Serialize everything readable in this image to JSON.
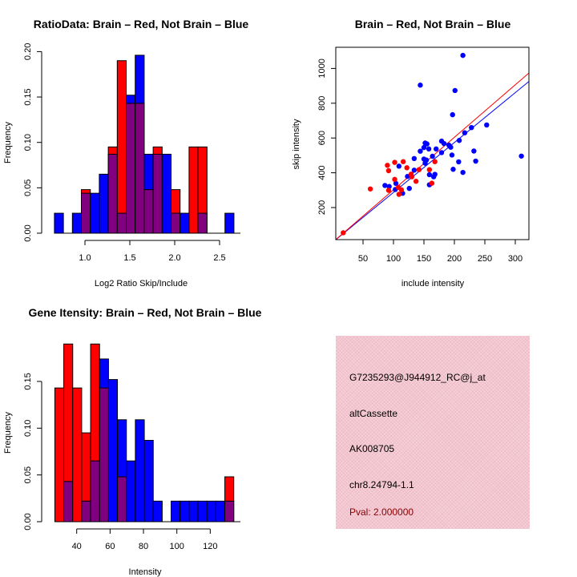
{
  "colors": {
    "brain": "#ff0000",
    "not_brain": "#0000ff",
    "overlap": "#800080",
    "info_bg": "#f3c6d0",
    "pval": "#8b0000"
  },
  "chart_data": [
    {
      "type": "bar",
      "subtype": "overlaid-histogram",
      "title": "RatioData: Brain – Red, Not Brain – Blue",
      "xlabel": "Log2 Ratio Skip/Include",
      "ylabel": "Frequency",
      "bin_start": 0.66,
      "bin_width": 0.1,
      "xticks": [
        "1.0",
        "1.5",
        "2.0",
        "2.5"
      ],
      "xtick_values": [
        1.0,
        1.5,
        2.0,
        2.5
      ],
      "yticks": [
        "0.00",
        "0.05",
        "0.10",
        "0.15",
        "0.20"
      ],
      "ytick_values": [
        0,
        0.05,
        0.1,
        0.15,
        0.2
      ],
      "series": [
        {
          "name": "Brain",
          "color": "#ff0000",
          "values": [
            0,
            0,
            0,
            0.048,
            0,
            0,
            0.095,
            0.19,
            0.143,
            0.143,
            0.048,
            0.095,
            0,
            0.048,
            0,
            0.095,
            0.095,
            0,
            0,
            0
          ]
        },
        {
          "name": "Not Brain",
          "color": "#0000ff",
          "values": [
            0.022,
            0,
            0.022,
            0.044,
            0.044,
            0.065,
            0.087,
            0.022,
            0.152,
            0.196,
            0.087,
            0.087,
            0.087,
            0.022,
            0.022,
            0,
            0.022,
            0,
            0,
            0.022
          ]
        }
      ]
    },
    {
      "type": "scatter",
      "title": "Brain – Red, Not Brain – Blue",
      "xlabel": "include intensity",
      "ylabel": "skip intensity",
      "xticks": [
        "50",
        "100",
        "150",
        "200",
        "250",
        "300"
      ],
      "xtick_values": [
        50,
        100,
        150,
        200,
        250,
        300
      ],
      "yticks": [
        "200",
        "400",
        "600",
        "800",
        "1000"
      ],
      "ytick_values": [
        200,
        400,
        600,
        800,
        1000
      ],
      "xlim": [
        5,
        322
      ],
      "ylim": [
        16,
        1120
      ],
      "series": [
        {
          "name": "Not Brain",
          "color": "#0000ff",
          "fit_slope": 2.87,
          "points": [
            [
              214,
              1075
            ],
            [
              144,
              904
            ],
            [
              201,
              873
            ],
            [
              197,
              734
            ],
            [
              253,
              675
            ],
            [
              228,
              660
            ],
            [
              217,
              630
            ],
            [
              208,
              586
            ],
            [
              179,
              582
            ],
            [
              183,
              568
            ],
            [
              152,
              571
            ],
            [
              155,
              566
            ],
            [
              150,
              545
            ],
            [
              158,
              537
            ],
            [
              170,
              537
            ],
            [
              191,
              559
            ],
            [
              194,
              547
            ],
            [
              144,
              524
            ],
            [
              179,
              516
            ],
            [
              196,
              502
            ],
            [
              232,
              525
            ],
            [
              164,
              495
            ],
            [
              134,
              482
            ],
            [
              150,
              479
            ],
            [
              154,
              473
            ],
            [
              152,
              455
            ],
            [
              235,
              467
            ],
            [
              207,
              463
            ],
            [
              109,
              438
            ],
            [
              134,
              415
            ],
            [
              198,
              420
            ],
            [
              214,
              402
            ],
            [
              159,
              389
            ],
            [
              168,
              391
            ],
            [
              166,
              377
            ],
            [
              123,
              379
            ],
            [
              129,
              382
            ],
            [
              310,
              496
            ],
            [
              104,
              339
            ],
            [
              86,
              327
            ],
            [
              93,
              321
            ],
            [
              103,
              304
            ],
            [
              126,
              310
            ],
            [
              115,
              282
            ],
            [
              159,
              331
            ]
          ]
        },
        {
          "name": "Brain",
          "color": "#ff0000",
          "fit_slope": 3.02,
          "points": [
            [
              17.5,
              55
            ],
            [
              62,
              307
            ],
            [
              90,
              443
            ],
            [
              92,
              412
            ],
            [
              102,
              460
            ],
            [
              116,
              464
            ],
            [
              122,
              429
            ],
            [
              142,
              418
            ],
            [
              159,
              418
            ],
            [
              168,
              464
            ],
            [
              102,
              362
            ],
            [
              129,
              392
            ],
            [
              130,
              377
            ],
            [
              137,
              351
            ],
            [
              163,
              340
            ],
            [
              92,
              299
            ],
            [
              108,
              316
            ],
            [
              113,
              302
            ],
            [
              109,
              276
            ]
          ]
        }
      ]
    },
    {
      "type": "bar",
      "subtype": "overlaid-histogram",
      "title": "Gene Itensity: Brain – Red, Not Brain – Blue",
      "xlabel": "Intensity",
      "ylabel": "Frequency",
      "bin_start": 26.9,
      "bin_width": 5.36,
      "xticks": [
        "40",
        "60",
        "80",
        "100",
        "120"
      ],
      "xtick_values": [
        40,
        60,
        80,
        100,
        120
      ],
      "yticks": [
        "0.00",
        "0.05",
        "0.10",
        "0.15"
      ],
      "ytick_values": [
        0,
        0.05,
        0.1,
        0.15
      ],
      "series": [
        {
          "name": "Brain",
          "color": "#ff0000",
          "values": [
            0.143,
            0.19,
            0.143,
            0.095,
            0.19,
            0.143,
            0,
            0.048,
            0,
            0,
            0,
            0,
            0,
            0,
            0,
            0,
            0,
            0,
            0,
            0.048
          ]
        },
        {
          "name": "Not Brain",
          "color": "#0000ff",
          "values": [
            0,
            0.043,
            0,
            0.022,
            0.065,
            0.174,
            0.152,
            0.109,
            0.065,
            0.109,
            0.087,
            0.022,
            0,
            0.022,
            0.022,
            0.022,
            0.022,
            0.022,
            0.022,
            0.022
          ]
        }
      ]
    }
  ],
  "info": {
    "probe": "G7235293@J944912_RC@j_at",
    "event_type": "altCassette",
    "accession": "AK008705",
    "location": "chr8.24794-1.1",
    "pval": "Pval: 2.000000"
  }
}
